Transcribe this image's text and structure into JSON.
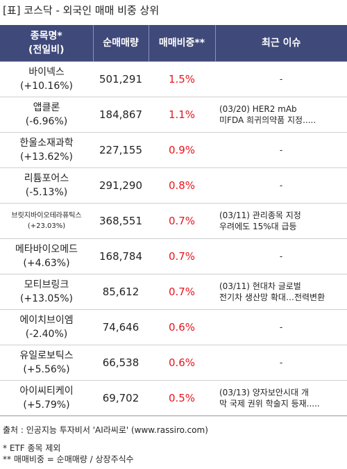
{
  "title": "[표] 코스닥 - 외국인 매매 비중 상위",
  "headers": {
    "name_line1": "종목명*",
    "name_line2": "(전일비)",
    "volume": "순매매량",
    "ratio": "매매비중**",
    "issue": "최근 이슈"
  },
  "rows": [
    {
      "name": "바이넥스",
      "change": "(+10.16%)",
      "volume": "501,291",
      "ratio": "1.5%",
      "issue1": "-",
      "issue2": ""
    },
    {
      "name": "앱클론",
      "change": "(-6.96%)",
      "volume": "184,867",
      "ratio": "1.1%",
      "issue1": "(03/20) HER2 mAb",
      "issue2": " 미FDA 희귀의약품 지정....."
    },
    {
      "name": "한울소재과학",
      "change": "(+13.62%)",
      "volume": "227,155",
      "ratio": "0.9%",
      "issue1": "-",
      "issue2": ""
    },
    {
      "name": "리튬포어스",
      "change": "(-5.13%)",
      "volume": "291,290",
      "ratio": "0.8%",
      "issue1": "-",
      "issue2": ""
    },
    {
      "name": "브릿지바이오테라퓨틱스",
      "change": "(+23.03%)",
      "volume": "368,551",
      "ratio": "0.7%",
      "issue1": "(03/11) 관리종목 지정",
      "issue2": "우려에도 15%대 급등"
    },
    {
      "name": "메타바이오메드",
      "change": "(+4.63%)",
      "volume": "168,784",
      "ratio": "0.7%",
      "issue1": "-",
      "issue2": ""
    },
    {
      "name": "모티브링크",
      "change": "(+13.05%)",
      "volume": "85,612",
      "ratio": "0.7%",
      "issue1": "(03/11) 현대차 글로벌",
      "issue2": "전기차 생산망 확대…전력변환"
    },
    {
      "name": "에이치브이엠",
      "change": "(-2.40%)",
      "volume": "74,646",
      "ratio": "0.6%",
      "issue1": "-",
      "issue2": ""
    },
    {
      "name": "유일로보틱스",
      "change": "(+5.56%)",
      "volume": "66,538",
      "ratio": "0.6%",
      "issue1": "-",
      "issue2": ""
    },
    {
      "name": "아이씨티케이",
      "change": "(+5.79%)",
      "volume": "69,702",
      "ratio": "0.5%",
      "issue1": "(03/13) 양자보안시대 개",
      "issue2": "막 국제 권위 학술지 등재....."
    }
  ],
  "footer": {
    "source": "출처 : 인공지능 투자비서 'AI라씨로' (www.rassiro.com)",
    "note1": "* ETF 종목 제외",
    "note2": "** 매매비중 = 순매매량 / 상장주식수"
  }
}
